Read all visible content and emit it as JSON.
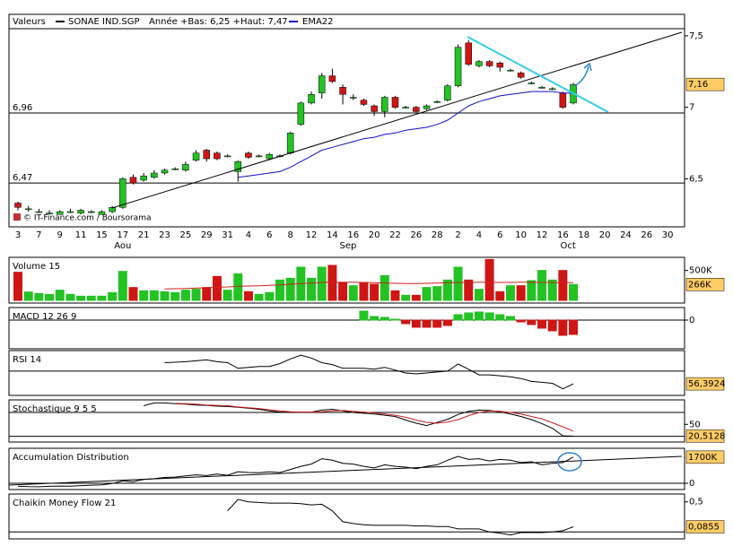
{
  "chart_data": [
    {
      "type": "candlestick",
      "title": "Valeurs",
      "name": "SONAE IND.SGP",
      "color": "#000000",
      "subtitle": "Année +Bas: 6,25 +Haut: 7,47",
      "watermark": "© IT-Finance.com / Boursorama",
      "categories": [
        "3",
        null,
        "7",
        null,
        "9",
        null,
        "11",
        null,
        "15",
        null,
        "17",
        null,
        "21",
        null,
        "23",
        null,
        "25",
        null,
        "29",
        null,
        "31",
        null,
        "4",
        null,
        "6",
        null,
        "8",
        null,
        "12",
        null,
        "14",
        null,
        "16",
        null,
        "20",
        null,
        "22",
        null,
        "26",
        null,
        "28",
        null,
        "2",
        null,
        "4",
        null,
        "6",
        null,
        "10",
        null,
        "12",
        null,
        "16",
        null,
        "18",
        null,
        "20",
        null,
        "24",
        null,
        "26",
        null,
        "30"
      ],
      "months": [
        {
          "index": 10,
          "label": "Aou"
        },
        {
          "index": 31.5,
          "label": "Sep"
        },
        {
          "index": 52.5,
          "label": "Oct"
        }
      ],
      "open": [
        6.33,
        6.29,
        6.27,
        6.26,
        6.25,
        6.27,
        6.26,
        6.27,
        6.25,
        6.27,
        6.3,
        6.51,
        6.49,
        6.51,
        6.54,
        6.57,
        6.56,
        6.63,
        6.7,
        6.68,
        6.66,
        6.55,
        6.68,
        6.66,
        6.64,
        6.66,
        6.68,
        6.88,
        7.03,
        7.1,
        7.22,
        7.14,
        7.07,
        7.05,
        7.01,
        6.97,
        7.07,
        7.0,
        7.0,
        6.99,
        7.04,
        7.05,
        7.15,
        7.45,
        7.29,
        7.32,
        7.31,
        7.26,
        7.24,
        7.17,
        7.14,
        7.13,
        7.1,
        7.03,
        null,
        null,
        null,
        null,
        null,
        null,
        null,
        null,
        null
      ],
      "high": [
        6.34,
        6.31,
        6.29,
        6.28,
        6.28,
        6.29,
        6.29,
        6.28,
        6.28,
        6.31,
        6.51,
        6.53,
        6.54,
        6.56,
        6.57,
        6.58,
        6.62,
        6.7,
        6.71,
        6.69,
        6.67,
        6.63,
        6.69,
        6.67,
        6.68,
        6.67,
        6.83,
        7.04,
        7.11,
        7.24,
        7.27,
        7.16,
        7.09,
        7.06,
        7.02,
        7.08,
        7.08,
        7.01,
        7.01,
        7.02,
        7.05,
        7.16,
        7.44,
        7.47,
        7.33,
        7.33,
        7.32,
        7.27,
        7.25,
        7.18,
        7.15,
        7.14,
        7.11,
        7.17,
        null,
        null,
        null,
        null,
        null,
        null,
        null,
        null,
        null
      ],
      "low": [
        6.28,
        6.27,
        6.26,
        6.25,
        6.25,
        6.26,
        6.25,
        6.26,
        6.25,
        6.26,
        6.29,
        6.46,
        6.48,
        6.5,
        6.53,
        6.56,
        6.55,
        6.62,
        6.62,
        6.63,
        6.65,
        6.48,
        6.64,
        6.65,
        6.63,
        6.65,
        6.67,
        6.87,
        7.02,
        7.06,
        7.17,
        7.02,
        7.05,
        7.01,
        6.94,
        6.93,
        6.99,
        6.99,
        6.96,
        6.98,
        7.03,
        7.04,
        7.14,
        7.29,
        7.28,
        7.28,
        7.25,
        7.25,
        7.2,
        7.16,
        7.13,
        7.12,
        6.99,
        7.02,
        null,
        null,
        null,
        null,
        null,
        null,
        null,
        null,
        null
      ],
      "close": [
        6.3,
        6.29,
        6.27,
        6.26,
        6.27,
        6.27,
        6.28,
        6.27,
        6.27,
        6.3,
        6.5,
        6.47,
        6.52,
        6.54,
        6.56,
        6.57,
        6.6,
        6.68,
        6.64,
        6.64,
        6.66,
        6.62,
        6.65,
        6.66,
        6.67,
        6.66,
        6.82,
        7.03,
        7.09,
        7.22,
        7.18,
        7.09,
        7.07,
        7.02,
        6.97,
        7.07,
        7.0,
        7.0,
        6.97,
        7.01,
        7.04,
        7.15,
        7.42,
        7.3,
        7.32,
        7.29,
        7.28,
        7.26,
        7.21,
        7.17,
        7.14,
        7.13,
        7.0,
        7.16,
        null,
        null,
        null,
        null,
        null,
        null,
        null,
        null,
        null
      ],
      "up_color": "#22c322",
      "down_color": "#d01515",
      "series": [
        {
          "name": "EMA22",
          "color": "#1010c8",
          "values": [
            null,
            null,
            null,
            null,
            null,
            null,
            null,
            null,
            null,
            null,
            null,
            null,
            null,
            null,
            null,
            null,
            null,
            null,
            null,
            null,
            null,
            6.51,
            6.52,
            6.53,
            6.54,
            6.55,
            6.58,
            6.62,
            6.66,
            6.7,
            6.72,
            6.74,
            6.76,
            6.78,
            6.79,
            6.81,
            6.82,
            6.84,
            6.85,
            6.86,
            6.88,
            6.91,
            6.96,
            7.01,
            7.04,
            7.06,
            7.08,
            7.09,
            7.1,
            7.11,
            7.11,
            7.11,
            7.1,
            7.1,
            null,
            null,
            null,
            null,
            null,
            null,
            null,
            null,
            null
          ]
        }
      ],
      "ylim": [
        6.17,
        7.65
      ],
      "yticks": [
        {
          "value": 6.5,
          "label": "6,5"
        },
        7,
        {
          "value": 7.5,
          "label": "7,5"
        }
      ],
      "hlines": [
        {
          "value": 6.96,
          "label": "6,96"
        },
        {
          "value": 6.47,
          "label": "6,47"
        }
      ],
      "last": {
        "value": 7.16,
        "label": "7,16"
      }
    },
    {
      "type": "bar",
      "title": "Volume 15",
      "color_by": "candle",
      "up_color": "#22c322",
      "down_color": "#d01515",
      "values": [
        470000,
        140000,
        115000,
        100000,
        170000,
        100000,
        70000,
        70000,
        70000,
        130000,
        485000,
        215000,
        160000,
        160000,
        145000,
        130000,
        170000,
        185000,
        215000,
        400000,
        170000,
        445000,
        145000,
        100000,
        130000,
        340000,
        370000,
        555000,
        370000,
        555000,
        585000,
        300000,
        245000,
        300000,
        270000,
        415000,
        160000,
        85000,
        85000,
        215000,
        230000,
        340000,
        555000,
        340000,
        185000,
        685000,
        145000,
        245000,
        245000,
        330000,
        500000,
        340000,
        500000,
        266000,
        null,
        null,
        null,
        null,
        null,
        null,
        null,
        null,
        null
      ],
      "series": [
        {
          "color": "#cc2020",
          "values": [
            null,
            null,
            null,
            null,
            null,
            null,
            null,
            null,
            null,
            null,
            null,
            null,
            null,
            null,
            190000,
            195000,
            200000,
            205000,
            210000,
            220000,
            225000,
            235000,
            240000,
            245000,
            250000,
            260000,
            270000,
            280000,
            290000,
            300000,
            305000,
            305000,
            305000,
            300000,
            295000,
            290000,
            285000,
            280000,
            280000,
            285000,
            290000,
            295000,
            300000,
            300000,
            305000,
            305000,
            300000,
            300000,
            305000,
            305000,
            300000,
            300000,
            295000,
            295000,
            null,
            null,
            null,
            null,
            null,
            null,
            null,
            null,
            null
          ]
        }
      ],
      "ylim": [
        0,
        690000
      ],
      "yticks": [
        {
          "value": 500000,
          "label": "500K"
        }
      ],
      "last": {
        "value": 266000,
        "label": "266K"
      }
    },
    {
      "type": "bar",
      "title": "MACD 12 26 9",
      "color_by": "sign",
      "up_color": "#22c322",
      "down_color": "#d01515",
      "values": [
        null,
        null,
        null,
        null,
        null,
        null,
        null,
        null,
        null,
        null,
        null,
        null,
        null,
        null,
        null,
        null,
        null,
        null,
        null,
        null,
        null,
        null,
        null,
        null,
        null,
        null,
        null,
        null,
        null,
        null,
        null,
        null,
        null,
        0.02,
        0.008,
        0.006,
        0.002,
        -0.008,
        -0.016,
        -0.016,
        -0.016,
        -0.012,
        0.012,
        0.016,
        0.018,
        0.016,
        0.012,
        0.008,
        -0.004,
        -0.01,
        -0.018,
        -0.024,
        -0.034,
        -0.032,
        null,
        null,
        null,
        null,
        null,
        null,
        null,
        null,
        null
      ],
      "series": [],
      "ylim": [
        -0.056,
        0.024
      ],
      "yticks": [
        0
      ],
      "hlines": [
        0
      ]
    },
    {
      "type": "line",
      "title": "RSI 14",
      "series": [
        {
          "color": "#000000",
          "values": [
            null,
            null,
            null,
            null,
            null,
            null,
            null,
            null,
            null,
            null,
            null,
            null,
            null,
            null,
            79,
            79.5,
            80,
            81,
            82,
            80,
            79,
            73,
            74,
            75,
            75,
            78,
            83,
            87,
            84,
            79,
            77,
            73,
            73,
            73,
            72,
            74,
            71,
            68,
            67,
            68,
            69,
            70,
            77.6,
            72,
            66,
            66,
            65,
            64,
            62,
            59,
            58,
            57,
            51,
            56.3924,
            null,
            null,
            null,
            null,
            null,
            null,
            null,
            null,
            null
          ]
        }
      ],
      "ylim": [
        45,
        90
      ],
      "hlines": [
        70
      ],
      "last": {
        "value": 56.3924,
        "label": "56,3924"
      }
    },
    {
      "type": "line",
      "title": "Stochastique 9 5 5",
      "series": [
        {
          "color": "#000000",
          "values": [
            null,
            null,
            null,
            null,
            null,
            null,
            null,
            null,
            null,
            null,
            null,
            null,
            97,
            104,
            104,
            102,
            101,
            99,
            98,
            96,
            95,
            93,
            91,
            88,
            84,
            81,
            81,
            81,
            81,
            86,
            88,
            84,
            80,
            78,
            76,
            73,
            70,
            61,
            53,
            47,
            55,
            63,
            75,
            83,
            86,
            85,
            82,
            76,
            70,
            62,
            52,
            40,
            21,
            20.5128,
            null,
            null,
            null,
            null,
            null,
            null,
            null,
            null,
            null
          ]
        },
        {
          "color": "#cc2020",
          "values": [
            null,
            null,
            null,
            null,
            null,
            null,
            null,
            null,
            null,
            null,
            null,
            null,
            null,
            null,
            null,
            103,
            102,
            101,
            99,
            98,
            97,
            94,
            92,
            90,
            87,
            84,
            82,
            81,
            81,
            82,
            84,
            85,
            83,
            81,
            79,
            76,
            73,
            68,
            61,
            55,
            53,
            56,
            62,
            72,
            80,
            84,
            83,
            80,
            76,
            70,
            64,
            54,
            44,
            33,
            null,
            null,
            null,
            null,
            null,
            null,
            null,
            null,
            null
          ]
        }
      ],
      "ylim": [
        10,
        105
      ],
      "yticks": [
        50
      ],
      "hlines": [
        20,
        80
      ],
      "last": {
        "value": 20.5128,
        "label": "20,5128"
      }
    },
    {
      "type": "line",
      "title": "Accumulation Distribution",
      "series": [
        {
          "color": "#000000",
          "values": [
            -200000,
            -220000,
            -230000,
            -200000,
            -180000,
            -190000,
            -150000,
            -120000,
            -100000,
            -20000,
            150000,
            100000,
            250000,
            300000,
            380000,
            400000,
            480000,
            550000,
            500000,
            600000,
            520000,
            750000,
            700000,
            680000,
            740000,
            700000,
            900000,
            1100000,
            1250000,
            1600000,
            1500000,
            1300000,
            1250000,
            1100000,
            1000000,
            1200000,
            1100000,
            1050000,
            950000,
            1100000,
            1200000,
            1500000,
            1750000,
            1550000,
            1600000,
            1450000,
            1550000,
            1500000,
            1350000,
            1400000,
            1200000,
            1300000,
            1350000,
            1700000,
            null,
            null,
            null,
            null,
            null,
            null,
            null,
            null,
            null
          ]
        }
      ],
      "ylim": [
        -350000,
        2100000
      ],
      "yticks": [
        0
      ],
      "hlines": [
        0
      ],
      "last": {
        "value": 1700000,
        "label": "1700K"
      }
    },
    {
      "type": "line",
      "title": "Chaikin Money Flow 21",
      "series": [
        {
          "color": "#000000",
          "values": [
            null,
            null,
            null,
            null,
            null,
            null,
            null,
            null,
            null,
            null,
            null,
            null,
            null,
            null,
            null,
            null,
            null,
            null,
            null,
            null,
            0.35,
            0.54,
            0.5,
            0.49,
            0.48,
            0.48,
            0.48,
            0.47,
            0.45,
            0.46,
            0.35,
            0.17,
            0.14,
            0.12,
            0.11,
            0.11,
            0.11,
            0.11,
            0.1,
            0.1,
            0.09,
            0.09,
            0.05,
            0.05,
            0.05,
            0,
            -0.02,
            -0.05,
            -0.01,
            -0.01,
            -0.01,
            0,
            0.02,
            0.0855,
            null,
            null,
            null,
            null,
            null,
            null,
            null,
            null,
            null
          ]
        }
      ],
      "ylim": [
        -0.1,
        0.6
      ],
      "yticks": [
        {
          "value": 0.5,
          "label": "0,5"
        }
      ],
      "hlines": [
        0
      ],
      "last": {
        "value": 0.0855,
        "label": "0,0855"
      }
    }
  ]
}
